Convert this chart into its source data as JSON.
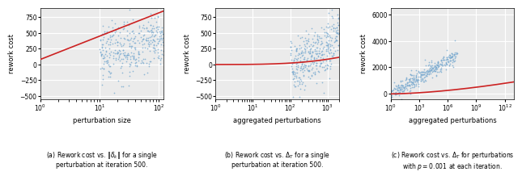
{
  "subplot1": {
    "xlabel": "perturbation size",
    "ylabel": "rework cost",
    "scatter_color": "#7aaad0",
    "line_color": "#cc2222",
    "scatter_xmin_log": 1.5,
    "scatter_xmax_log": 2.1,
    "curve_start": 0,
    "curve_end": 2,
    "curve_a": 400,
    "curve_b": 80,
    "ylim": [
      -550,
      900
    ],
    "xlim_low": 1.0,
    "xlim_high": 120,
    "yticks": [
      -500,
      -250,
      0,
      250,
      500,
      750
    ],
    "caption": "(a) Rework cost vs. $\\|\\delta_k\\|$ for a single\nperturbation at iteration 500."
  },
  "subplot2": {
    "xlabel": "aggregated perturbations",
    "ylabel": "rework cost",
    "scatter_color": "#7aaad0",
    "line_color": "#cc2222",
    "scatter_xmin_log": 2.0,
    "scatter_xmax_log": 3.3,
    "ylim": [
      -550,
      900
    ],
    "xlim_low": 1.0,
    "xlim_high": 2000,
    "yticks": [
      -500,
      -250,
      0,
      250,
      500,
      750
    ],
    "caption": "(b) Rework cost vs. $\\Delta_T$ for a single\nperturbation at iteration 500."
  },
  "subplot3": {
    "xlabel": "aggregated perturbations",
    "ylabel": "rework cost",
    "scatter_color": "#7aaad0",
    "line_color": "#cc2222",
    "scatter_xmin_log": 0,
    "scatter_xmax_log": 7,
    "ylim": [
      -400,
      6500
    ],
    "xlim_low": 1.0,
    "xlim_high": 10000000000000.0,
    "yticks": [
      0,
      2000,
      4000,
      6000
    ],
    "caption": "(c) Rework cost vs. $\\Delta_T$ for perturbations\nwith $p=0.001$ at each iteration."
  },
  "bg_color": "#ebebeb",
  "grid_color": "#ffffff",
  "n_points": 350
}
